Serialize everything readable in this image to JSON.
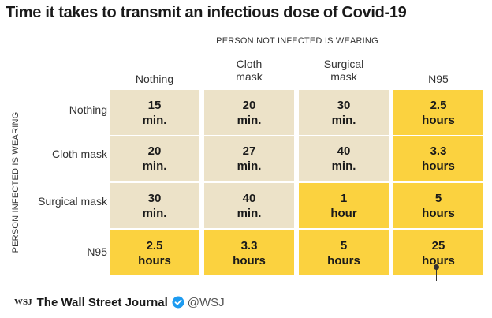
{
  "title": "Time it takes to transmit an infectious dose of Covid-19",
  "colors": {
    "beige": "#ece2c8",
    "yellow": "#fbd23f",
    "verified_blue": "#1d9bf0"
  },
  "chart_data": {
    "type": "table",
    "column_axis_label": "PERSON NOT INFECTED IS WEARING",
    "row_axis_label": "PERSON INFECTED IS WEARING",
    "columns": [
      "Nothing",
      "Cloth mask",
      "Surgical mask",
      "N95"
    ],
    "column_labels_display": [
      "Nothing",
      "Cloth\nmask",
      "Surgical\nmask",
      "N95"
    ],
    "rows": [
      "Nothing",
      "Cloth mask",
      "Surgical mask",
      "N95"
    ],
    "cell_text": [
      [
        "15\nmin.",
        "20\nmin.",
        "30\nmin.",
        "2.5\nhours"
      ],
      [
        "20\nmin.",
        "27\nmin.",
        "40\nmin.",
        "3.3\nhours"
      ],
      [
        "30\nmin.",
        "40\nmin.",
        "1\nhour",
        "5\nhours"
      ],
      [
        "2.5\nhours",
        "3.3\nhours",
        "5\nhours",
        "25\nhours"
      ]
    ],
    "values_minutes": [
      [
        15,
        20,
        30,
        150
      ],
      [
        20,
        27,
        40,
        198
      ],
      [
        30,
        40,
        60,
        300
      ],
      [
        150,
        198,
        300,
        1500
      ]
    ],
    "highlight": [
      [
        false,
        false,
        false,
        true
      ],
      [
        false,
        false,
        false,
        true
      ],
      [
        false,
        false,
        true,
        true
      ],
      [
        true,
        true,
        true,
        true
      ]
    ]
  },
  "footer": {
    "logo": "WSJ",
    "name": "The Wall Street Journal",
    "handle": "@WSJ",
    "verified_icon": "verified-badge-icon"
  }
}
